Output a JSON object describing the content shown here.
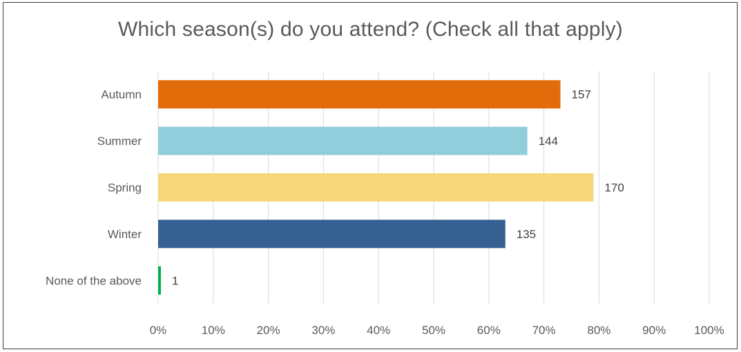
{
  "chart_data": {
    "type": "bar",
    "orientation": "horizontal",
    "title": "Which season(s) do you attend? (Check all that apply)",
    "xlabel": "",
    "ylabel": "",
    "xlim": [
      0,
      100
    ],
    "x_ticks": [
      "0%",
      "10%",
      "20%",
      "30%",
      "40%",
      "50%",
      "60%",
      "70%",
      "80%",
      "90%",
      "100%"
    ],
    "grid": true,
    "categories": [
      "Autumn",
      "Summer",
      "Spring",
      "Winter",
      "None of the above"
    ],
    "percent_values": [
      73,
      67,
      79,
      63,
      0.5
    ],
    "data_labels": [
      "157",
      "144",
      "170",
      "135",
      "1"
    ],
    "colors": [
      "#E36C0A",
      "#92CDDC",
      "#F6D77A",
      "#366092",
      "#00B050"
    ]
  }
}
